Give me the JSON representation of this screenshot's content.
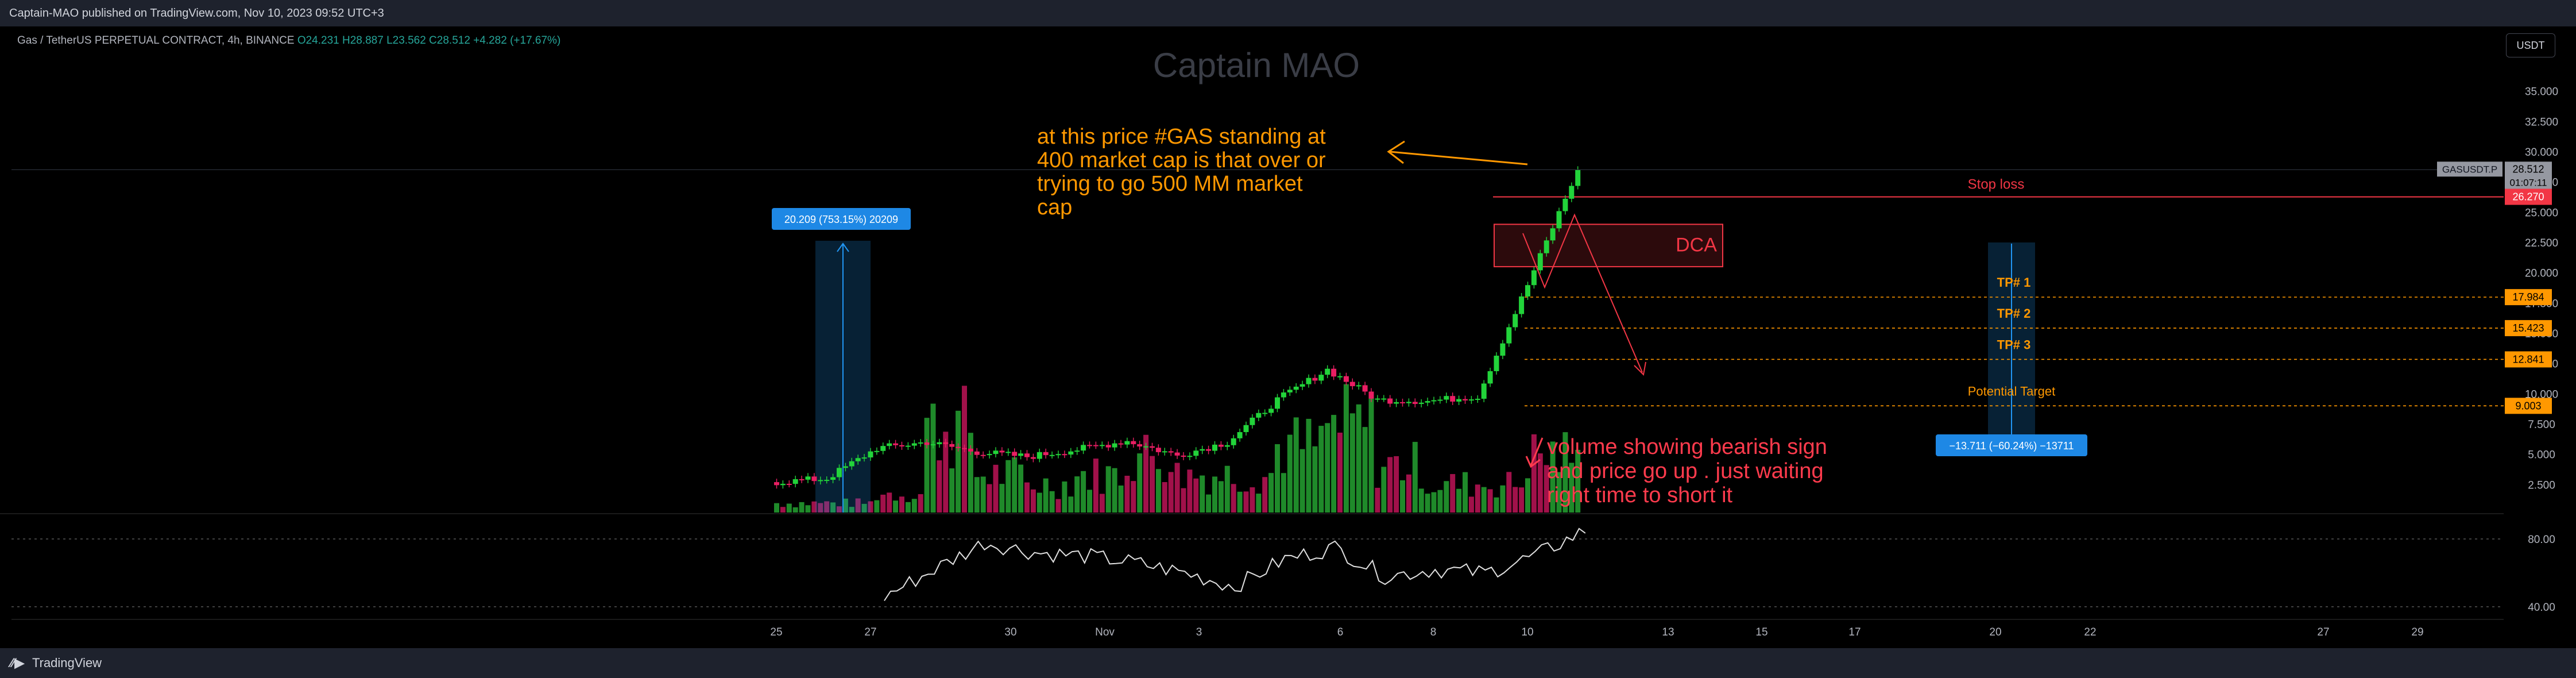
{
  "header": {
    "published": "Captain-MAO published on TradingView.com, Nov 10, 2023 09:52 UTC+3"
  },
  "symbol": {
    "name": "Gas / TetherUS PERPETUAL CONTRACT, 4h, BINANCE",
    "ohlc": "O24.231  H28.887  L23.562  C28.512  +4.282 (+17.67%)"
  },
  "currency_button": "USDT",
  "watermark": "Captain MAO",
  "footer": {
    "logo": "TradingView"
  },
  "colors": {
    "up": "#26a69a",
    "down": "#ef5350",
    "vol_up": "#1f8a2a",
    "vol_down": "#a1114a",
    "annotation_orange": "#ff9800",
    "annotation_red": "#ff3b4d",
    "measure_blue": "#2196f3"
  },
  "chart_data": {
    "type": "line",
    "price_axis": {
      "ticks": [
        "35.000",
        "32.500",
        "30.000",
        "27.500",
        "25.000",
        "22.500",
        "20.000",
        "17.500",
        "15.000",
        "12.500",
        "10.000",
        "7.500",
        "5.000",
        "2.500"
      ],
      "ylim": [
        0,
        37.5
      ]
    },
    "time_axis": {
      "labels": [
        "25",
        "27",
        "30",
        "Nov",
        "3",
        "6",
        "8",
        "10",
        "13",
        "15",
        "17",
        "20",
        "22",
        "27",
        "29"
      ]
    },
    "price_series": {
      "name": "GASUSDT.P",
      "x": [
        "Oct 25",
        "Oct 26",
        "Oct 27",
        "Oct 28",
        "Oct 29",
        "Oct 30",
        "Oct 31",
        "Nov 1",
        "Nov 2",
        "Nov 3",
        "Nov 4",
        "Nov 5",
        "Nov 6",
        "Nov 7",
        "Nov 8",
        "Nov 9",
        "Nov 10"
      ],
      "close": [
        2.7,
        3.0,
        5.5,
        6.0,
        5.2,
        4.8,
        5.4,
        6.1,
        4.9,
        6.0,
        9.5,
        12.0,
        9.5,
        9.4,
        9.8,
        19.0,
        28.512
      ]
    },
    "volume_series": {
      "x": [
        "Oct 25",
        "Oct 26",
        "Oct 27",
        "Oct 28",
        "Oct 29",
        "Oct 30",
        "Oct 31",
        "Nov 1",
        "Nov 2",
        "Nov 3",
        "Nov 4",
        "Nov 5",
        "Nov 6",
        "Nov 7",
        "Nov 8",
        "Nov 9",
        "Nov 10"
      ],
      "relative": [
        0.1,
        0.1,
        0.2,
        0.9,
        0.4,
        0.3,
        0.4,
        0.6,
        0.4,
        0.4,
        0.7,
        0.9,
        0.5,
        0.3,
        0.3,
        0.6,
        0.5
      ]
    },
    "rsi": {
      "ticks": [
        "80.00",
        "40.00"
      ],
      "x": [
        "Oct 27",
        "Oct 28",
        "Oct 29",
        "Oct 30",
        "Oct 31",
        "Nov 1",
        "Nov 2",
        "Nov 3",
        "Nov 4",
        "Nov 5",
        "Nov 6",
        "Nov 7",
        "Nov 8",
        "Nov 9",
        "Nov 10"
      ],
      "values": [
        46,
        62,
        78,
        72,
        70,
        66,
        60,
        52,
        68,
        75,
        58,
        62,
        60,
        70,
        85
      ]
    },
    "price_labels": [
      {
        "name": "GASUSDT.P",
        "value": "28.512",
        "extra": "01:07:11",
        "color": "#9598a1"
      },
      {
        "name": "stop-loss",
        "value": "26.270",
        "color": "#f23645"
      },
      {
        "name": "tp1",
        "value": "17.984",
        "color": "#ff9800"
      },
      {
        "name": "tp2",
        "value": "15.423",
        "color": "#ff9800"
      },
      {
        "name": "tp3",
        "value": "12.841",
        "color": "#ff9800"
      },
      {
        "name": "target",
        "value": "9.003",
        "color": "#ff9800"
      }
    ],
    "levels": [
      {
        "key": "stop_loss",
        "price": 26.27,
        "label": "Stop loss"
      },
      {
        "key": "tp1",
        "price": 17.984,
        "label": "TP# 1"
      },
      {
        "key": "tp2",
        "price": 15.423,
        "label": "TP# 2"
      },
      {
        "key": "tp3",
        "price": 12.841,
        "label": "TP# 3"
      },
      {
        "key": "target",
        "price": 9.003,
        "label": "Potential Target"
      }
    ],
    "dca_zone": {
      "label": "DCA",
      "from": 20.5,
      "to": 24.0
    },
    "measure_up": {
      "label": "20.209 (753.15%) 20209"
    },
    "measure_down": {
      "label": "−13.711 (−60.24%) −13711"
    },
    "annotations": {
      "orange": [
        "at this price #GAS  standing at",
        "400 market cap is that over or",
        "trying to go 500 MM market",
        "cap"
      ],
      "red": [
        "volume showing bearish sign",
        "and price go up . just waiting",
        "right time to short it"
      ]
    }
  }
}
